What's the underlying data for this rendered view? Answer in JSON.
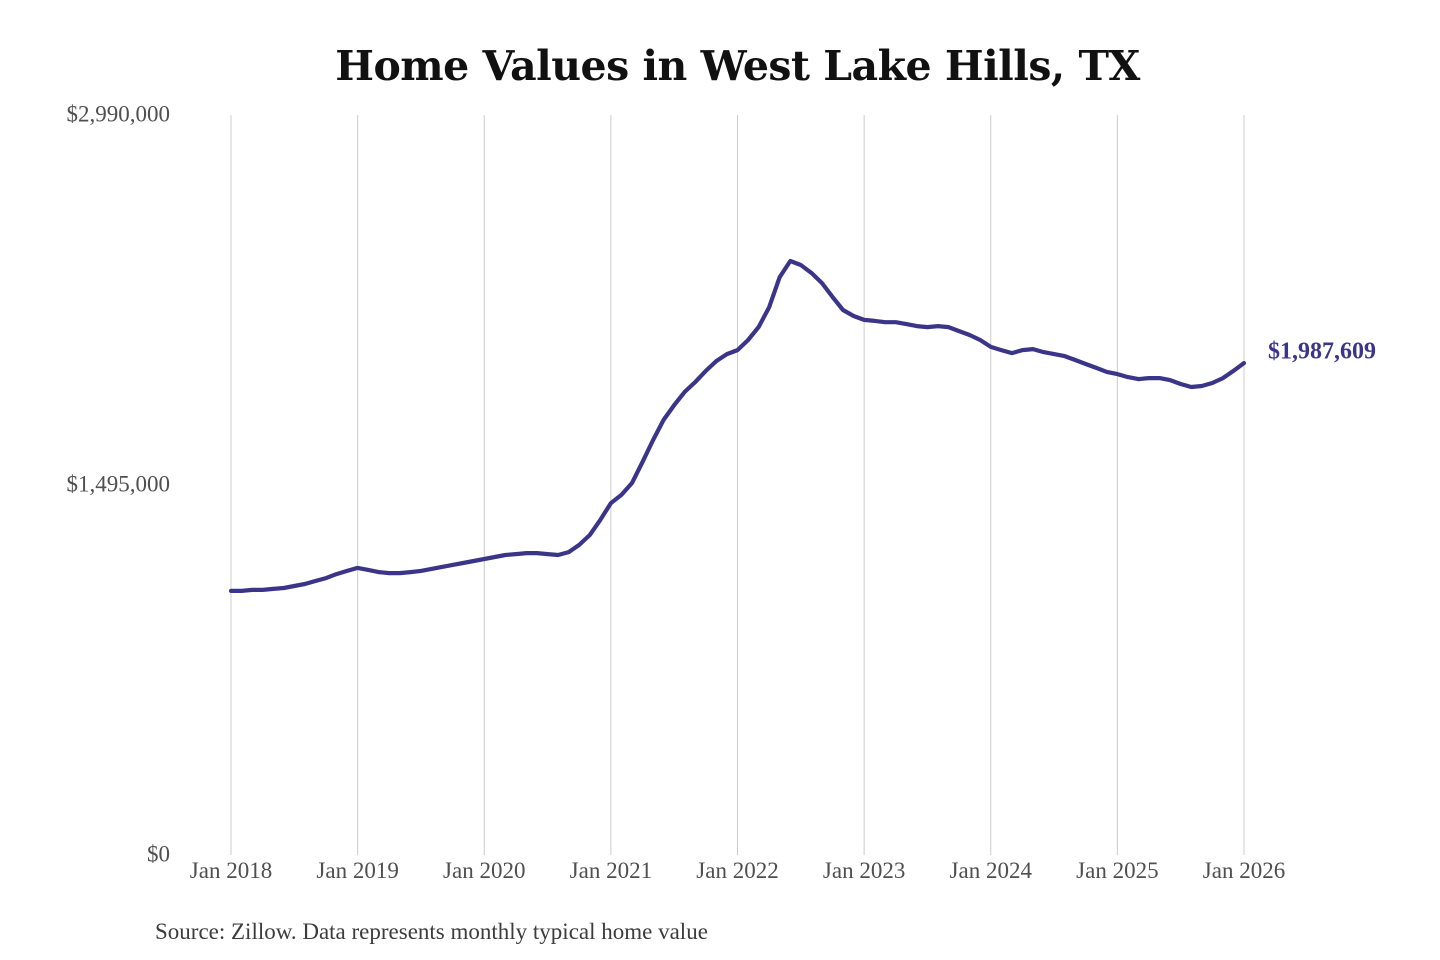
{
  "chart_data": {
    "type": "line",
    "title": "Home Values in West Lake Hills, TX",
    "source_note": "Source: Zillow. Data represents monthly typical home value",
    "end_label": "$1,987,609",
    "last_value": 1987609,
    "x_start": "Jan 2018",
    "x_interval": "monthly",
    "x_tick_labels": [
      "Jan 2018",
      "Jan 2019",
      "Jan 2020",
      "Jan 2021",
      "Jan 2022",
      "Jan 2023",
      "Jan 2024",
      "Jan 2025",
      "Jan 2026"
    ],
    "y_tick_labels": [
      "$0",
      "$1,495,000",
      "$2,990,000"
    ],
    "y_ticks": [
      0,
      1495000,
      2990000
    ],
    "ylim": [
      0,
      2990000
    ],
    "grid": "vertical-only",
    "legend": "none",
    "colors": {
      "line": "#3b3589",
      "end_label": "#3b3589",
      "axis_text": "#4f4f4f",
      "gridline": "#cccccc",
      "title_text": "#111111",
      "source_text": "#3c3c3c",
      "background": "#ffffff"
    },
    "series": [
      {
        "name": "Monthly typical home value",
        "values": [
          1067000,
          1067000,
          1071000,
          1071000,
          1075000,
          1079000,
          1087000,
          1095000,
          1107000,
          1119000,
          1135000,
          1148000,
          1160000,
          1152000,
          1143000,
          1139000,
          1139000,
          1143000,
          1148000,
          1156000,
          1164000,
          1172000,
          1180000,
          1188000,
          1196000,
          1204000,
          1212000,
          1216000,
          1220000,
          1220000,
          1216000,
          1212000,
          1224000,
          1253000,
          1293000,
          1354000,
          1422000,
          1455000,
          1503000,
          1588000,
          1677000,
          1758000,
          1818000,
          1871000,
          1911000,
          1956000,
          1996000,
          2024000,
          2040000,
          2081000,
          2133000,
          2214000,
          2335000,
          2400000,
          2384000,
          2352000,
          2311000,
          2255000,
          2202000,
          2178000,
          2162000,
          2158000,
          2153000,
          2153000,
          2145000,
          2137000,
          2133000,
          2137000,
          2133000,
          2117000,
          2101000,
          2081000,
          2053000,
          2040000,
          2028000,
          2040000,
          2044000,
          2032000,
          2024000,
          2016000,
          2000000,
          1984000,
          1968000,
          1952000,
          1943000,
          1931000,
          1923000,
          1927000,
          1927000,
          1919000,
          1903000,
          1891000,
          1895000,
          1907000,
          1927000,
          1956000,
          1987609
        ]
      }
    ]
  }
}
